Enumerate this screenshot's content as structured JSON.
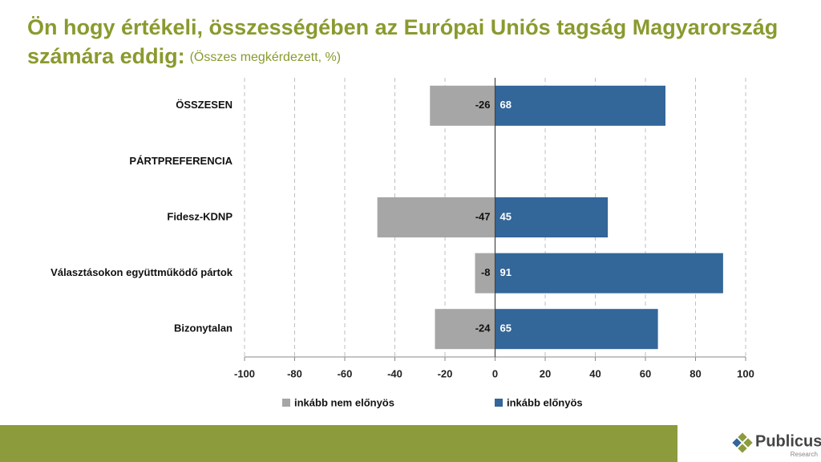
{
  "chart_data": {
    "type": "diverging-bar",
    "title": "Ön hogy értékeli, összességében az Európai Uniós tagság Magyarország",
    "title_line2": "számára eddig:",
    "subtitle": "(Összes megkérdezett, %)",
    "categories": [
      "ÖSSZESEN",
      "PÁRTPREFERENCIA",
      "Fidesz-KDNP",
      "Választásokon együttműködő pártok",
      "Bizonytalan"
    ],
    "series": [
      {
        "name": "inkább nem előnyös",
        "color": "#a6a6a6",
        "values": [
          -26,
          null,
          -47,
          -8,
          -24
        ]
      },
      {
        "name": "inkább előnyös",
        "color": "#336699",
        "values": [
          68,
          null,
          45,
          91,
          65
        ]
      }
    ],
    "xlim": [
      -100,
      100
    ],
    "xticks": [
      -100,
      -80,
      -60,
      -40,
      -20,
      0,
      20,
      40,
      60,
      80,
      100
    ],
    "grid": true
  },
  "footer": {
    "logo": "Publicus",
    "logo_sub": "Research"
  }
}
